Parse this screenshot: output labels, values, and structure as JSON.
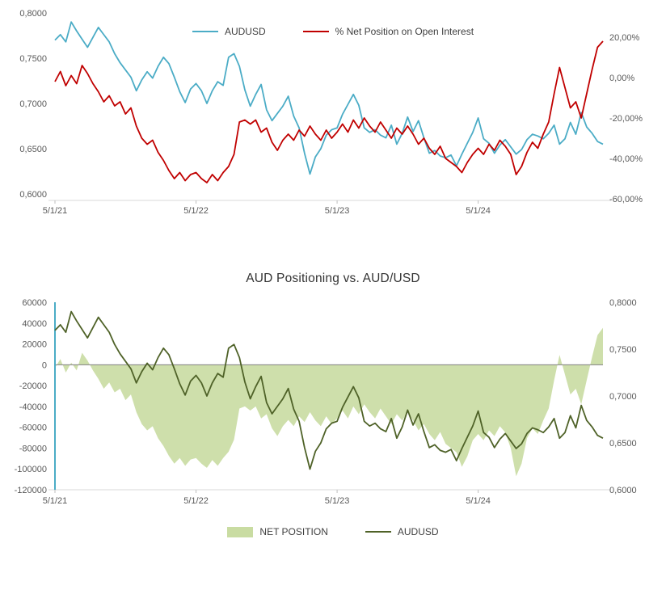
{
  "chart_data": [
    {
      "type": "line",
      "title": "",
      "legend_position": "top",
      "x_tick_labels": [
        "5/1/21",
        "5/1/22",
        "5/1/23",
        "5/1/24"
      ],
      "x_tick_indices": [
        0,
        26,
        52,
        78
      ],
      "n_points": 102,
      "grid": "off",
      "left_axis": {
        "range": [
          0.6,
          0.8
        ],
        "tick_values": [
          0.8,
          0.75,
          0.7,
          0.65,
          0.6
        ],
        "tick_labels": [
          "0,8000",
          "0,7500",
          "0,7000",
          "0,6500",
          "0,6000"
        ]
      },
      "right_axis": {
        "range": [
          -60,
          20
        ],
        "tick_values": [
          20,
          0,
          -20,
          -40,
          -60
        ],
        "tick_labels": [
          "20,00%",
          "0,00%",
          "-20,00%",
          "-40,00%",
          "-60,00%"
        ]
      },
      "series": [
        {
          "name": "AUDUSD",
          "axis": "left",
          "type": "line",
          "color": "#4BACC6",
          "values": [
            0.77,
            0.776,
            0.768,
            0.79,
            0.78,
            0.771,
            0.762,
            0.773,
            0.784,
            0.776,
            0.768,
            0.755,
            0.745,
            0.737,
            0.729,
            0.714,
            0.726,
            0.735,
            0.728,
            0.741,
            0.751,
            0.744,
            0.729,
            0.713,
            0.701,
            0.716,
            0.722,
            0.714,
            0.7,
            0.714,
            0.724,
            0.72,
            0.751,
            0.755,
            0.741,
            0.715,
            0.697,
            0.71,
            0.721,
            0.693,
            0.681,
            0.689,
            0.697,
            0.708,
            0.686,
            0.673,
            0.645,
            0.622,
            0.641,
            0.65,
            0.665,
            0.671,
            0.673,
            0.688,
            0.699,
            0.71,
            0.698,
            0.673,
            0.668,
            0.671,
            0.665,
            0.662,
            0.676,
            0.655,
            0.667,
            0.685,
            0.669,
            0.681,
            0.662,
            0.645,
            0.648,
            0.642,
            0.64,
            0.643,
            0.631,
            0.644,
            0.656,
            0.668,
            0.684,
            0.661,
            0.656,
            0.645,
            0.654,
            0.66,
            0.652,
            0.644,
            0.649,
            0.66,
            0.666,
            0.664,
            0.661,
            0.667,
            0.676,
            0.655,
            0.661,
            0.679,
            0.666,
            0.69,
            0.674,
            0.667,
            0.658,
            0.655
          ]
        },
        {
          "name": "% Net Position on Open Interest",
          "axis": "right",
          "type": "line",
          "color": "#C00000",
          "values": [
            -2,
            3,
            -4,
            1,
            -3,
            6,
            2,
            -3,
            -7,
            -12,
            -9,
            -14,
            -12,
            -18,
            -15,
            -24,
            -30,
            -33,
            -31,
            -37,
            -41,
            -46,
            -50,
            -47,
            -51,
            -48,
            -47,
            -50,
            -52,
            -48,
            -51,
            -47,
            -44,
            -38,
            -22,
            -21,
            -23,
            -21,
            -27,
            -25,
            -32,
            -36,
            -31,
            -28,
            -31,
            -26,
            -29,
            -24,
            -28,
            -31,
            -26,
            -30,
            -27,
            -23,
            -27,
            -21,
            -25,
            -20,
            -24,
            -27,
            -22,
            -26,
            -30,
            -25,
            -28,
            -24,
            -28,
            -33,
            -30,
            -35,
            -38,
            -34,
            -40,
            -42,
            -44,
            -47,
            -42,
            -38,
            -35,
            -38,
            -33,
            -36,
            -31,
            -34,
            -38,
            -48,
            -44,
            -37,
            -32,
            -35,
            -28,
            -22,
            -8,
            5,
            -5,
            -15,
            -12,
            -20,
            -8,
            4,
            15,
            18
          ]
        }
      ]
    },
    {
      "type": "combo",
      "title": "AUD Positioning vs. AUD/USD",
      "legend_position": "bottom",
      "x_tick_labels": [
        "5/1/21",
        "5/1/22",
        "5/1/23",
        "5/1/24"
      ],
      "x_tick_indices": [
        0,
        26,
        52,
        78
      ],
      "n_points": 102,
      "grid": "off",
      "left_axis": {
        "range": [
          -120000,
          60000
        ],
        "tick_values": [
          60000,
          40000,
          20000,
          0,
          -20000,
          -40000,
          -60000,
          -80000,
          -100000,
          -120000
        ],
        "tick_labels": [
          "60000",
          "40000",
          "20000",
          "0",
          "-20000",
          "-40000",
          "-60000",
          "-80000",
          "-100000",
          "-120000"
        ]
      },
      "right_axis": {
        "range": [
          0.6,
          0.8
        ],
        "tick_values": [
          0.8,
          0.75,
          0.7,
          0.65,
          0.6
        ],
        "tick_labels": [
          "0,8000",
          "0,7500",
          "0,7000",
          "0,6500",
          "0,6000"
        ]
      },
      "series": [
        {
          "name": "NET POSITION",
          "axis": "left",
          "type": "area",
          "color": "#C9DCA2",
          "values": [
            -3000,
            5500,
            -7500,
            2000,
            -5500,
            11500,
            4000,
            -5500,
            -13500,
            -23000,
            -17000,
            -26500,
            -23000,
            -34000,
            -28500,
            -45500,
            -57000,
            -63000,
            -59000,
            -70500,
            -78000,
            -87500,
            -95000,
            -89500,
            -97000,
            -91000,
            -89500,
            -95000,
            -99000,
            -91500,
            -97000,
            -89500,
            -83500,
            -72000,
            -42000,
            -40000,
            -44000,
            -40000,
            -51500,
            -47500,
            -61000,
            -68500,
            -59000,
            -53000,
            -59000,
            -49500,
            -55000,
            -45500,
            -53500,
            -59000,
            -49500,
            -57000,
            -51500,
            -44000,
            -51500,
            -40000,
            -47500,
            -38000,
            -45500,
            -51500,
            -42000,
            -49500,
            -57000,
            -47500,
            -53500,
            -45500,
            -53500,
            -63000,
            -57000,
            -66500,
            -72500,
            -64500,
            -76000,
            -80000,
            -84000,
            -98000,
            -88000,
            -72500,
            -66500,
            -72500,
            -63000,
            -68500,
            -59000,
            -65000,
            -80000,
            -107000,
            -95000,
            -70500,
            -61000,
            -66500,
            -53500,
            -42000,
            -15000,
            9500,
            -9500,
            -28500,
            -23000,
            -38000,
            -15000,
            7500,
            28500,
            35500
          ]
        },
        {
          "name": "AUDUSD",
          "axis": "right",
          "type": "line",
          "color": "#4F6228",
          "values": [
            0.77,
            0.776,
            0.768,
            0.79,
            0.78,
            0.771,
            0.762,
            0.773,
            0.784,
            0.776,
            0.768,
            0.755,
            0.745,
            0.737,
            0.729,
            0.714,
            0.726,
            0.735,
            0.728,
            0.741,
            0.751,
            0.744,
            0.729,
            0.713,
            0.701,
            0.716,
            0.722,
            0.714,
            0.7,
            0.714,
            0.724,
            0.72,
            0.751,
            0.755,
            0.741,
            0.715,
            0.697,
            0.71,
            0.721,
            0.693,
            0.681,
            0.689,
            0.697,
            0.708,
            0.686,
            0.673,
            0.645,
            0.622,
            0.641,
            0.65,
            0.665,
            0.671,
            0.673,
            0.688,
            0.699,
            0.71,
            0.698,
            0.673,
            0.668,
            0.671,
            0.665,
            0.662,
            0.676,
            0.655,
            0.667,
            0.685,
            0.669,
            0.681,
            0.662,
            0.645,
            0.648,
            0.642,
            0.64,
            0.643,
            0.631,
            0.644,
            0.656,
            0.668,
            0.684,
            0.661,
            0.656,
            0.645,
            0.654,
            0.66,
            0.652,
            0.644,
            0.649,
            0.66,
            0.666,
            0.664,
            0.661,
            0.667,
            0.676,
            0.655,
            0.661,
            0.679,
            0.666,
            0.69,
            0.674,
            0.667,
            0.658,
            0.655
          ]
        }
      ]
    }
  ],
  "colors": {
    "axis_line": "#d9d9d9",
    "tick_mark": "#bfbfbf",
    "zero_line": "#808080",
    "left_axis_accent": "#4BACC6",
    "label_text": "#595959"
  }
}
